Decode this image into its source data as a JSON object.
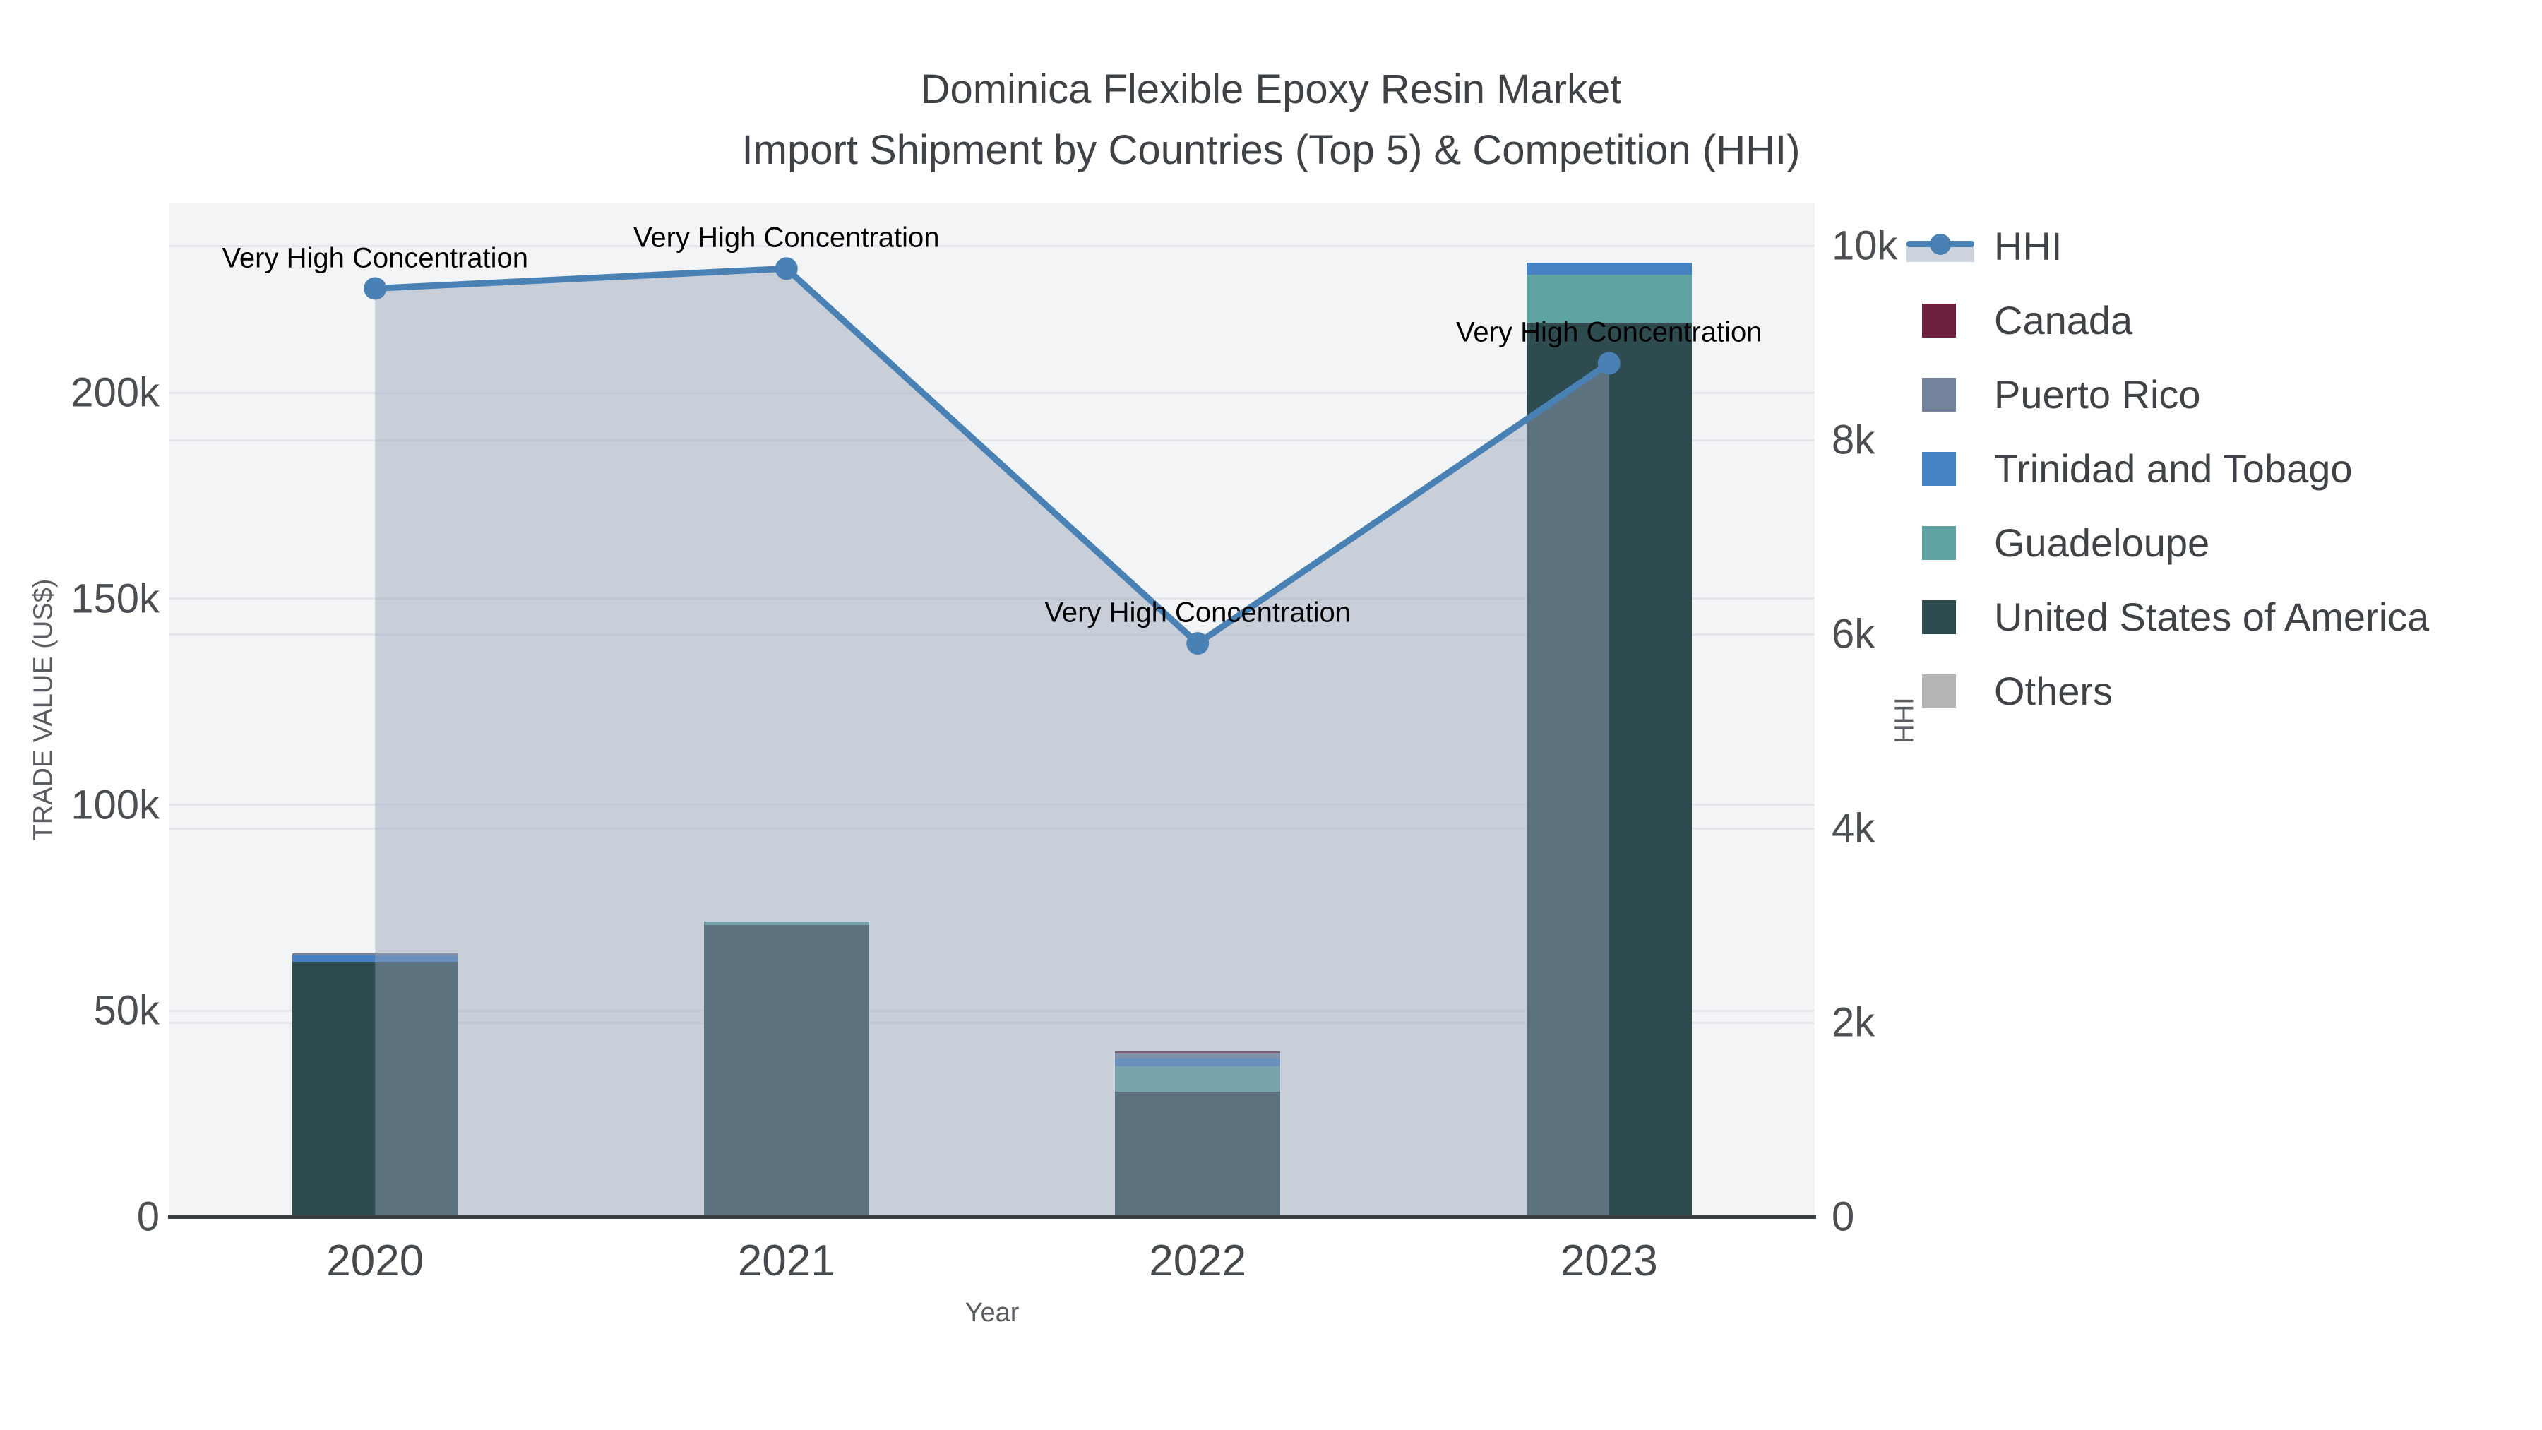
{
  "title": {
    "line1": "Dominica Flexible Epoxy Resin Market",
    "line2": "Import Shipment by Countries (Top 5) & Competition (HHI)"
  },
  "chart_data": {
    "type": "bar",
    "subtype": "stacked-bars-with-line",
    "categories": [
      "2020",
      "2021",
      "2022",
      "2023"
    ],
    "bar_series": [
      {
        "name": "United States of America",
        "color": "#2e4b50",
        "values": [
          61900,
          70800,
          30400,
          217000
        ]
      },
      {
        "name": "Guadeloupe",
        "color": "#5fa3a2",
        "values": [
          0,
          870,
          6150,
          11550
        ]
      },
      {
        "name": "Trinidad and Tobago",
        "color": "#4682c3",
        "values": [
          1550,
          0,
          2000,
          3000
        ]
      },
      {
        "name": "Puerto Rico",
        "color": "#74849e",
        "values": [
          460,
          0,
          1150,
          0
        ]
      },
      {
        "name": "Canada",
        "color": "#6b1f3f",
        "values": [
          0,
          0,
          400,
          0
        ]
      },
      {
        "name": "Others",
        "color": "#b5b5b8",
        "values": [
          0,
          0,
          0,
          0
        ]
      }
    ],
    "line_series": {
      "name": "HHI",
      "color": "#4a81b5",
      "area_fill": "rgba(150,162,183,0.45)",
      "values": [
        9560,
        9765,
        5905,
        8790
      ]
    },
    "annotations": [
      "Very High Concentration",
      "Very High Concentration",
      "Very High Concentration",
      "Very High Concentration"
    ],
    "axes": {
      "x": {
        "title": "Year",
        "tick_labels": [
          "2020",
          "2021",
          "2022",
          "2023"
        ]
      },
      "y_left": {
        "title": "TRADE VALUE (US$)",
        "ticks": [
          0,
          50000,
          100000,
          150000,
          200000
        ],
        "tick_labels": [
          "0",
          "50k",
          "100k",
          "150k",
          "200k"
        ],
        "range": [
          0,
          245900
        ]
      },
      "y_right": {
        "title": "HHI",
        "ticks": [
          0,
          2000,
          4000,
          6000,
          8000,
          10000
        ],
        "tick_labels": [
          "0",
          "2k",
          "4k",
          "6k",
          "8k",
          "10k"
        ],
        "range": [
          0,
          10430
        ]
      }
    },
    "legend": [
      {
        "label": "HHI",
        "type": "line",
        "color": "#4a81b5",
        "band": "#ccd3dd"
      },
      {
        "label": "Canada",
        "type": "square",
        "color": "#6b1f3f"
      },
      {
        "label": "Puerto Rico",
        "type": "square",
        "color": "#74849e"
      },
      {
        "label": "Trinidad and Tobago",
        "type": "square",
        "color": "#4682c3"
      },
      {
        "label": "Guadeloupe",
        "type": "square",
        "color": "#5fa3a2"
      },
      {
        "label": "United States of America",
        "type": "square",
        "color": "#2e4b50"
      },
      {
        "label": "Others",
        "type": "square",
        "color": "#b5b5b8"
      }
    ],
    "grid": true,
    "legend_position": "right"
  }
}
